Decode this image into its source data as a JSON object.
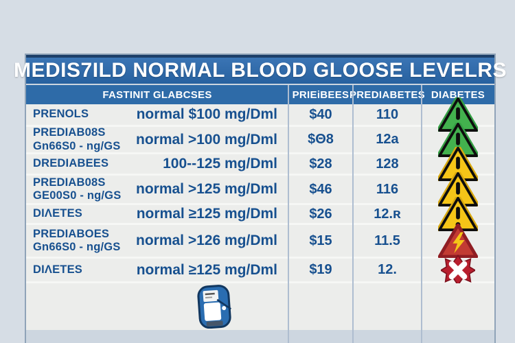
{
  "table": {
    "title": "MEDIS7ILD NORMAL BLOOD GLOOSE LEVELRS",
    "columns": [
      "FASTINIT GLABCSES",
      "PRIEiBEES",
      "PREDIABETES",
      "DIABETES"
    ],
    "rows": [
      {
        "condition": "PRENOLS",
        "condition2": "",
        "fasting": "normal $100 mg/Dml",
        "priebees": "$40",
        "prediabetes": "110",
        "icon": "green-warning-triangle-icon"
      },
      {
        "condition": "PREDIAB08S",
        "condition2": "Gn66S0 - ng/GS",
        "fasting": "normal >100 mg/Dml",
        "priebees": "$Θ8",
        "prediabetes": "12a",
        "icon": "green-warning-triangle-icon"
      },
      {
        "condition": "DREDIABEES",
        "condition2": "",
        "fasting": "100--125 mg/Dml",
        "priebees": "$28",
        "prediabetes": "128",
        "icon": "yellow-warning-triangle-icon"
      },
      {
        "condition": "PREDIAB08S",
        "condition2": "GE00S0 - ng/GS",
        "fasting": "normal >125 mg/Dml",
        "priebees": "$46",
        "prediabetes": "116",
        "icon": "yellow-warning-triangle-icon"
      },
      {
        "condition": "DIΛETES",
        "condition2": "",
        "fasting": "normal ≥125 mg/Dml",
        "priebees": "$26",
        "prediabetes": "12.ʀ",
        "icon": "yellow-warning-triangle-icon"
      },
      {
        "condition": "PREDIABOES",
        "condition2": "Gn66S0 - ng/GS",
        "fasting": "normal >126 mg/Dml",
        "priebees": "$15",
        "prediabetes": "11.5",
        "icon": "red-lightning-triangle-icon"
      },
      {
        "condition": "DIΛETES",
        "condition2": "",
        "fasting": "normal ≥125 mg/Dml",
        "priebees": "$19",
        "prediabetes": "12.",
        "icon": "red-x-burst-icon"
      }
    ],
    "footer_icon": "glucometer-icon",
    "colors": {
      "title_bar": "#2b63a4",
      "title_bar_border": "#1c3e68",
      "header_bar": "#2e6ba8",
      "row_bg": "#ecedeb",
      "page_bg": "#d6dde5",
      "data_text": "#17508f",
      "divider": "#aebdd0",
      "warn_green": "#43b14e",
      "warn_yellow": "#f5c518",
      "warn_red": "#c23b33",
      "x_red": "#b81f2e"
    }
  },
  "chart_data": {
    "type": "table",
    "title": "MEDIS7ILD NORMAL BLOOD GLOOSE LEVELRS",
    "columns": [
      "FASTINIT GLABCSES",
      "PRIEiBEES",
      "PREDIABETES",
      "DIABETES"
    ],
    "rows": [
      [
        "PRENOLS",
        "normal $100 mg/Dml",
        "$40",
        "110",
        "green-warning-triangle"
      ],
      [
        "PREDIAB08S Gn66S0 - ng/GS",
        "normal >100 mg/Dml",
        "$Θ8",
        "12a",
        "green-warning-triangle"
      ],
      [
        "DREDIABEES",
        "100--125 mg/Dml",
        "$28",
        "128",
        "yellow-warning-triangle"
      ],
      [
        "PREDIAB08S GE00S0 - ng/GS",
        "normal >125 mg/Dml",
        "$46",
        "116",
        "yellow-warning-triangle"
      ],
      [
        "DIΛETES",
        "normal ≥125 mg/Dml",
        "$26",
        "12.ʀ",
        "yellow-warning-triangle"
      ],
      [
        "PREDIABOES Gn66S0 - ng/GS",
        "normal >126 mg/Dml",
        "$15",
        "11.5",
        "red-lightning-triangle"
      ],
      [
        "DIΛETES",
        "normal ≥125 mg/Dml",
        "$19",
        "12.",
        "red-x-burst"
      ]
    ]
  }
}
